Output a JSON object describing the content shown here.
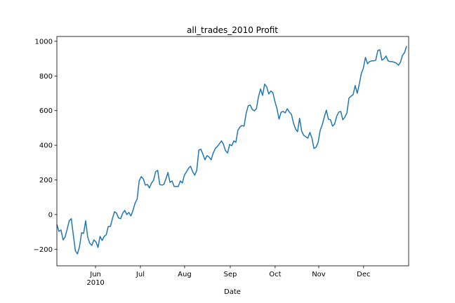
{
  "chart_data": {
    "type": "line",
    "title": "all_trades_2010 Profit",
    "x_label": "Date",
    "color": "#1f77b4",
    "values": [
      -57,
      -97,
      -89,
      -146,
      -130,
      -85,
      -36,
      -24,
      -117,
      -210,
      -227,
      -186,
      -105,
      -109,
      -36,
      -130,
      -166,
      -178,
      -146,
      -158,
      -190,
      -126,
      -150,
      -126,
      -117,
      -69,
      -69,
      -24,
      16,
      8,
      -20,
      -24,
      8,
      24,
      0,
      12,
      -8,
      24,
      65,
      89,
      194,
      219,
      206,
      170,
      174,
      154,
      182,
      198,
      247,
      255,
      174,
      170,
      174,
      206,
      243,
      186,
      194,
      162,
      162,
      162,
      194,
      182,
      227,
      247,
      267,
      279,
      247,
      227,
      255,
      372,
      377,
      348,
      316,
      340,
      332,
      316,
      356,
      381,
      393,
      409,
      425,
      405,
      368,
      356,
      405,
      397,
      425,
      417,
      486,
      506,
      514,
      510,
      583,
      628,
      632,
      607,
      599,
      611,
      680,
      725,
      688,
      753,
      737,
      696,
      713,
      704,
      652,
      611,
      551,
      591,
      595,
      587,
      611,
      591,
      579,
      530,
      494,
      478,
      555,
      482,
      457,
      449,
      441,
      474,
      441,
      381,
      389,
      417,
      486,
      518,
      563,
      603,
      551,
      547,
      510,
      522,
      567,
      591,
      595,
      547,
      563,
      587,
      672,
      684,
      692,
      745,
      700,
      753,
      814,
      846,
      907,
      870,
      883,
      887,
      887,
      891,
      947,
      951,
      891,
      899,
      915,
      887,
      883,
      883,
      879,
      874,
      862,
      879,
      919,
      935,
      972
    ],
    "xlim": [
      0,
      171
    ],
    "ylim": [
      -296,
      1028
    ],
    "xticks": [
      {
        "value": 18.8,
        "label": "Jun"
      },
      {
        "value": 40.6,
        "label": "Jul"
      },
      {
        "value": 62.1,
        "label": "Aug"
      },
      {
        "value": 84.3,
        "label": "Sep"
      },
      {
        "value": 106.1,
        "label": "Oct"
      },
      {
        "value": 127.3,
        "label": "Nov"
      },
      {
        "value": 149.1,
        "label": "Dec"
      }
    ],
    "x_year_label": "2010",
    "yticks": [
      {
        "value": -200,
        "label": "−200"
      },
      0,
      200,
      400,
      600,
      800,
      1000
    ]
  }
}
